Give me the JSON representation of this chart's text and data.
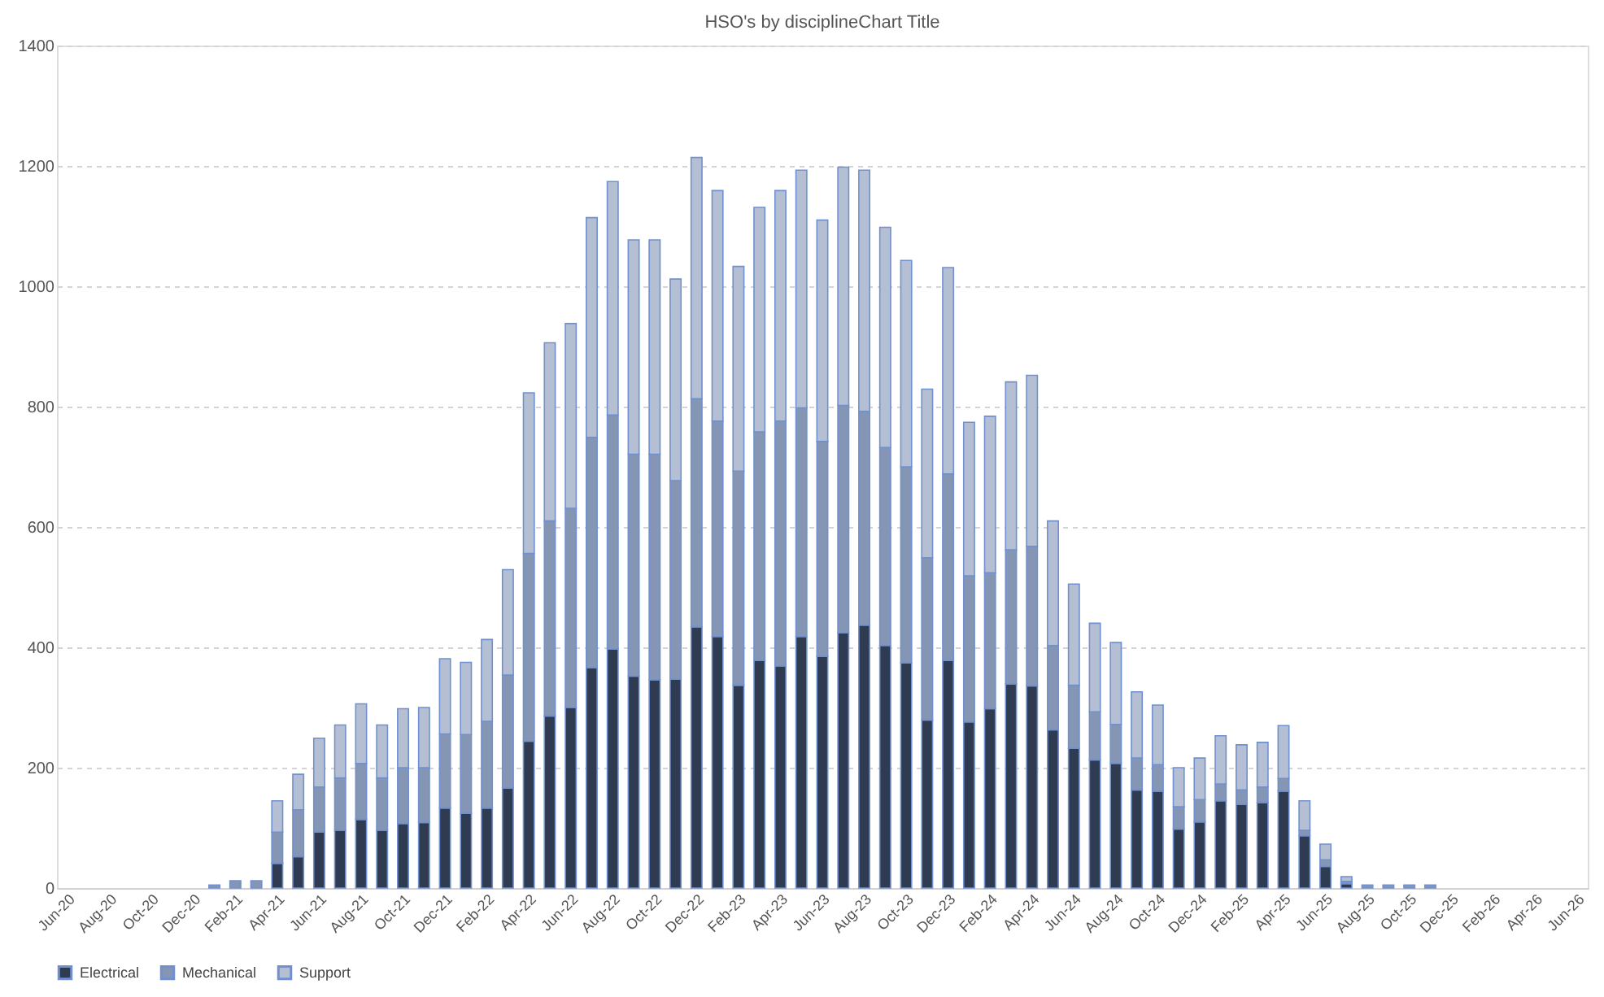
{
  "chart_data": {
    "type": "bar",
    "stacked": true,
    "title": "HSO's by disciplineChart Title",
    "categories": [
      "Jun-20",
      null,
      "Aug-20",
      null,
      "Oct-20",
      null,
      "Dec-20",
      null,
      "Feb-21",
      null,
      "Apr-21",
      null,
      "Jun-21",
      null,
      "Aug-21",
      null,
      "Oct-21",
      null,
      "Dec-21",
      null,
      "Feb-22",
      null,
      "Apr-22",
      null,
      "Jun-22",
      null,
      "Aug-22",
      null,
      "Oct-22",
      null,
      "Dec-22",
      null,
      "Feb-23",
      null,
      "Apr-23",
      null,
      "Jun-23",
      null,
      "Aug-23",
      null,
      "Oct-23",
      null,
      "Dec-23",
      null,
      "Feb-24",
      null,
      "Apr-24",
      null,
      "Jun-24",
      null,
      "Aug-24",
      null,
      "Oct-24",
      null,
      "Dec-24",
      null,
      "Feb-25",
      null,
      "Apr-25",
      null,
      "Jun-25",
      null,
      "Aug-25",
      null,
      "Oct-25",
      null,
      "Dec-25",
      null,
      "Feb-26",
      null,
      "Apr-26",
      null,
      "Jun-26"
    ],
    "series": [
      {
        "name": "Electrical",
        "color": "#2e3b50",
        "values": [
          0,
          0,
          0,
          0,
          0,
          0,
          0,
          0,
          0,
          0,
          41,
          52,
          93,
          96,
          114,
          96,
          107,
          109,
          133,
          124,
          133,
          166,
          244,
          286,
          300,
          366,
          397,
          352,
          346,
          347,
          434,
          418,
          337,
          378,
          369,
          418,
          385,
          424,
          437,
          403,
          374,
          279,
          378,
          276,
          298,
          339,
          336,
          263,
          232,
          213,
          207,
          163,
          161,
          98,
          110,
          145,
          139,
          142,
          161,
          87,
          36,
          7,
          0,
          0,
          0,
          0,
          0,
          0,
          0,
          0,
          0,
          0,
          0
        ]
      },
      {
        "name": "Mechanical",
        "color": "#8596b4",
        "values": [
          0,
          0,
          0,
          0,
          0,
          0,
          0,
          5,
          12,
          12,
          52,
          78,
          75,
          87,
          93,
          87,
          93,
          91,
          123,
          131,
          144,
          188,
          312,
          324,
          331,
          383,
          389,
          369,
          375,
          330,
          379,
          358,
          356,
          380,
          407,
          380,
          357,
          378,
          355,
          329,
          326,
          270,
          310,
          243,
          226,
          223,
          232,
          140,
          105,
          80,
          65,
          53,
          44,
          37,
          37,
          28,
          24,
          26,
          21,
          9,
          11,
          4,
          5,
          5,
          5,
          5,
          0,
          0,
          0,
          0,
          0,
          0,
          0
        ]
      },
      {
        "name": "Support",
        "color": "#b4bfd3",
        "values": [
          0,
          0,
          0,
          0,
          0,
          0,
          0,
          0,
          0,
          0,
          52,
          59,
          81,
          88,
          99,
          88,
          98,
          100,
          125,
          120,
          136,
          175,
          267,
          296,
          307,
          365,
          388,
          356,
          356,
          335,
          401,
          383,
          340,
          373,
          383,
          395,
          368,
          396,
          401,
          366,
          343,
          280,
          343,
          255,
          260,
          279,
          284,
          207,
          168,
          147,
          136,
          110,
          99,
          65,
          69,
          80,
          75,
          74,
          88,
          49,
          26,
          8,
          0,
          0,
          0,
          0,
          0,
          0,
          0,
          0,
          0,
          0,
          0
        ]
      }
    ],
    "ylim": [
      0,
      1400
    ],
    "yticks": [
      0,
      200,
      400,
      600,
      800,
      1000,
      1200,
      1400
    ],
    "grid": "y",
    "legend": "bottom"
  }
}
